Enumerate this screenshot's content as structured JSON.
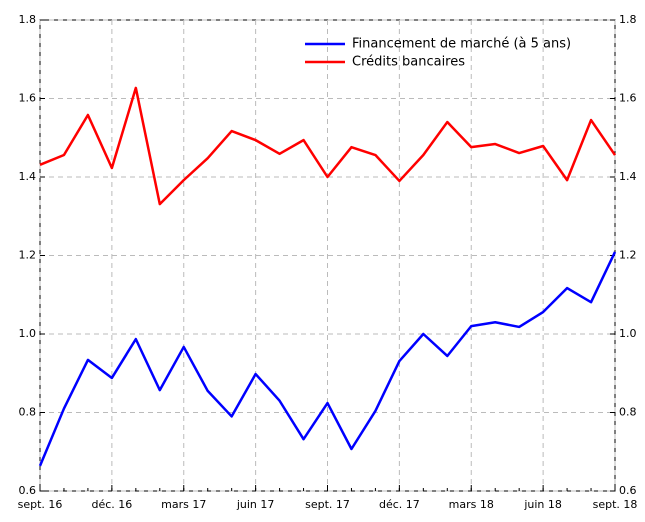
{
  "chart_data": {
    "type": "line",
    "categories": [
      "sept. 16",
      null,
      null,
      "déc. 16",
      null,
      null,
      "mars 17",
      null,
      null,
      "juin 17",
      null,
      null,
      "sept. 17",
      null,
      null,
      "déc. 17",
      null,
      null,
      "mars 18",
      null,
      null,
      "juin 18",
      null,
      null,
      "sept. 18"
    ],
    "series": [
      {
        "name": "Financement de marché (à 5 ans)",
        "color": "#0000ff",
        "values": [
          0.664,
          0.81,
          0.934,
          0.888,
          0.987,
          0.857,
          0.967,
          0.855,
          0.79,
          0.898,
          0.83,
          0.732,
          0.824,
          0.707,
          0.804,
          0.931,
          1.0,
          0.944,
          1.02,
          1.03,
          1.018,
          1.056,
          1.117,
          1.081,
          1.209
        ]
      },
      {
        "name": "Crédits bancaires",
        "color": "#ff0000",
        "values": [
          1.431,
          1.456,
          1.558,
          1.423,
          1.627,
          1.331,
          1.392,
          1.448,
          1.517,
          1.494,
          1.459,
          1.494,
          1.4,
          1.476,
          1.456,
          1.39,
          1.456,
          1.54,
          1.476,
          1.484,
          1.461,
          1.479,
          1.392,
          1.545,
          1.456
        ]
      }
    ],
    "ylim": [
      0.6,
      1.8
    ],
    "yticks": [
      0.6,
      0.8,
      {
        "value": 1,
        "label": "1.0"
      },
      1.2,
      1.4,
      1.6,
      1.8
    ],
    "grid": true,
    "legend": "upper right"
  }
}
